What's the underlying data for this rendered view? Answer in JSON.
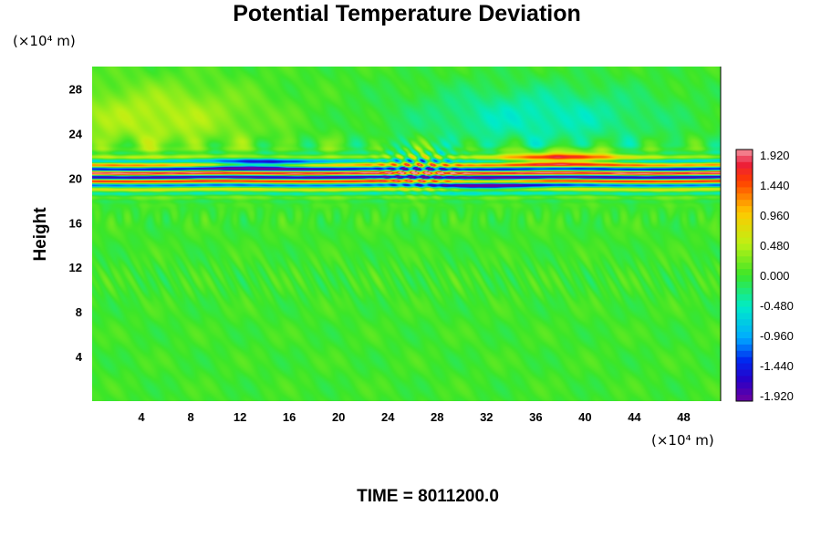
{
  "chart_data": {
    "type": "heatmap",
    "title": "Potential Temperature Deviation",
    "xlabel": "",
    "ylabel": "Height",
    "x_unit": "(×10⁴ m)",
    "y_unit": "(×10⁴ m)",
    "xlim": [
      0,
      51
    ],
    "ylim": [
      0,
      30
    ],
    "x_ticks": [
      4,
      8,
      12,
      16,
      20,
      24,
      28,
      32,
      36,
      40,
      44,
      48
    ],
    "y_ticks": [
      4,
      8,
      12,
      16,
      20,
      24,
      28
    ],
    "x_tick_labels": [
      "4",
      "8",
      "12",
      "16",
      "20",
      "24",
      "28",
      "32",
      "36",
      "40",
      "44",
      "48"
    ],
    "y_tick_labels": [
      "4",
      "8",
      "12",
      "16",
      "20",
      "24",
      "28"
    ],
    "colorbar": {
      "min": -1.92,
      "max": 1.92,
      "tick_labels": [
        "1.920",
        "1.440",
        "0.960",
        "0.480",
        "0.000",
        "-0.480",
        "-0.960",
        "-1.440",
        "-1.920"
      ],
      "tick_values": [
        1.92,
        1.44,
        0.96,
        0.48,
        0.0,
        -0.48,
        -0.96,
        -1.44,
        -1.92
      ]
    },
    "features": [
      {
        "desc": "strong alternating positive/negative band",
        "y_center": 20.4,
        "amplitude": 1.92
      },
      {
        "desc": "warm anomaly patch",
        "x_range": [
          33,
          44
        ],
        "y_center": 21.8,
        "value": 1.5
      },
      {
        "desc": "cold streak",
        "x_range": [
          10,
          17
        ],
        "y_center": 21.2,
        "value": -1.5
      },
      {
        "desc": "wave packet",
        "x_center": 26.5,
        "y_center": 21.0
      },
      {
        "desc": "weak positive region",
        "x_center": 5,
        "y_center": 25.5,
        "value": 0.45
      },
      {
        "desc": "weak negative region",
        "x_center": 36,
        "y_center": 25.5,
        "value": -0.45
      }
    ],
    "grid": false,
    "legend": "colorbar right"
  },
  "footer": {
    "time_label": "TIME = 8011200.0"
  }
}
